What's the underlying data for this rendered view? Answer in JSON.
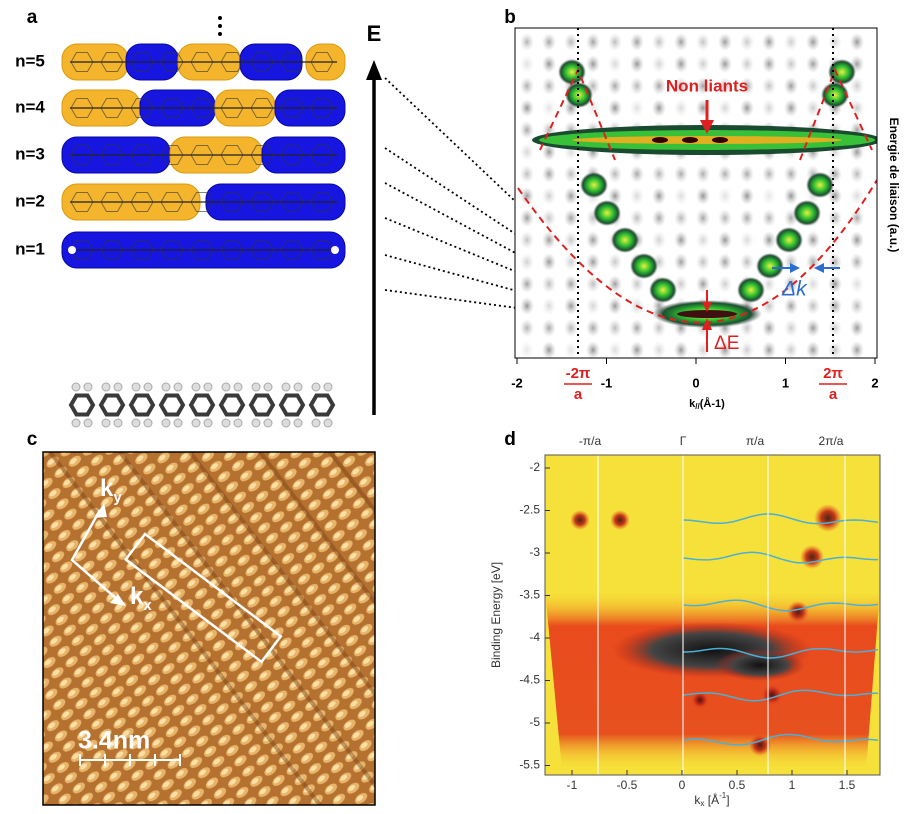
{
  "panel_a": {
    "label": "a",
    "levels": [
      "n=5",
      "n=4",
      "n=3",
      "n=2",
      "n=1"
    ]
  },
  "energy_axis": {
    "label": "E"
  },
  "panel_b": {
    "label": "b",
    "annotation": "Non liants",
    "delta_k": "Δk",
    "delta_e": "ΔE",
    "y_label": "Energie de liaison (a.u.)",
    "x_label": {
      "k": "k",
      "sub": "//",
      "rest": "(Å-1)"
    },
    "x_ticks": [
      -2,
      -1,
      0,
      1,
      2
    ],
    "zone_ticks": [
      {
        "numerator": "-2π",
        "denominator": "a"
      },
      {
        "numerator": "2π",
        "denominator": "a"
      }
    ]
  },
  "panel_c": {
    "label": "c",
    "ky": {
      "k": "k",
      "sub": "y"
    },
    "kx": {
      "k": "k",
      "sub": "x"
    },
    "scale_bar": "3.4nm"
  },
  "panel_d": {
    "label": "d",
    "y_label": "Binding Energy [eV]",
    "x_label": {
      "k": "k",
      "sub": "x",
      "rest": " [Å",
      "sup": "-1",
      "end": "]"
    },
    "x_ticks": [
      -1,
      -0.5,
      0,
      0.5,
      1,
      1.5
    ],
    "y_ticks": [
      -2,
      -2.5,
      -3,
      -3.5,
      -4,
      -4.5,
      -5,
      -5.5
    ],
    "top_labels": [
      "-π/a",
      "Γ",
      "π/a",
      "2π/a"
    ]
  }
}
